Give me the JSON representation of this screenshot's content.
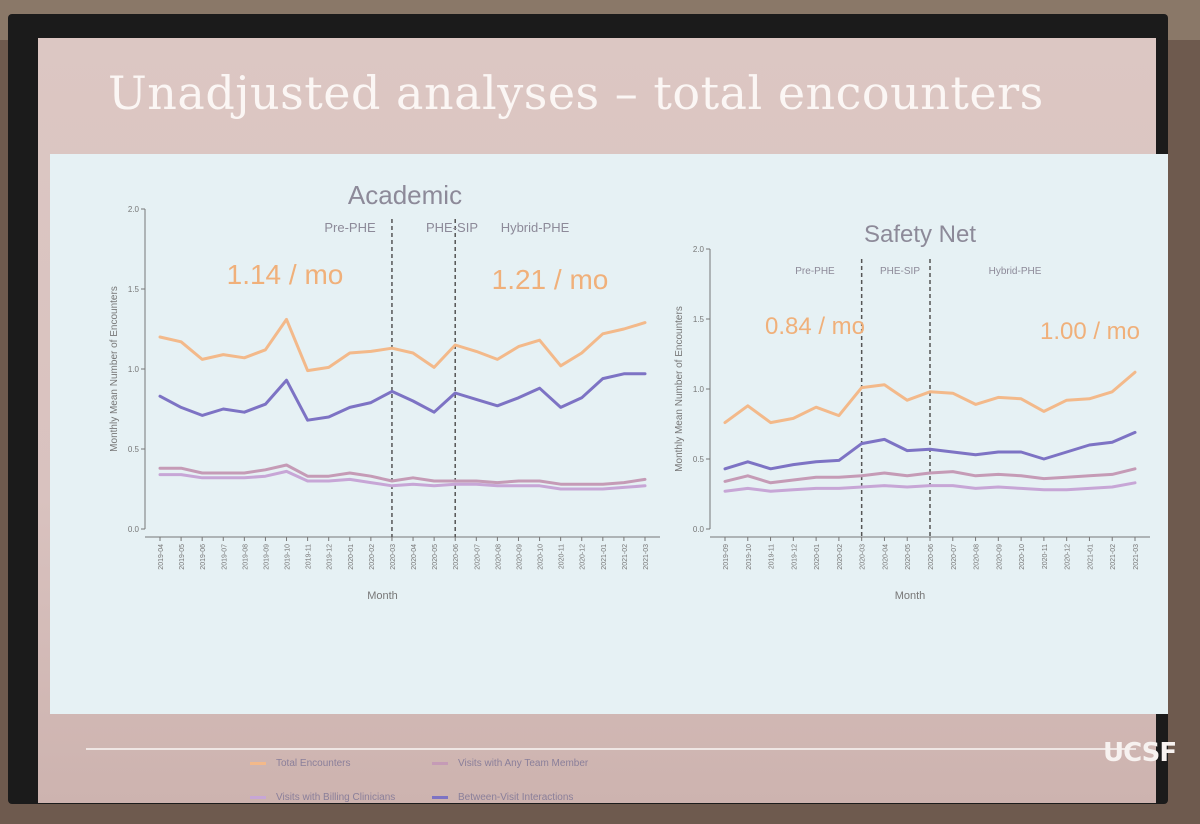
{
  "slide": {
    "title": "Unadjusted analyses – total encounters",
    "logo": "UCSF"
  },
  "colors": {
    "total": "#f3b98a",
    "any_team": "#c59bb6",
    "billing": "#c7a6d6",
    "between": "#7d73c4",
    "period_line": "#555555",
    "axis": "#777777",
    "rate_text": "#f0b07a"
  },
  "legend": [
    {
      "label": "Total Encounters",
      "series": "total"
    },
    {
      "label": "Visits with Any Team Member",
      "series": "any_team"
    },
    {
      "label": "Visits with Billing Clinicians",
      "series": "billing"
    },
    {
      "label": "Between-Visit Interactions",
      "series": "between"
    }
  ],
  "chart_data": [
    {
      "type": "line",
      "title": "Academic",
      "xlabel": "Month",
      "ylabel": "Monthly Mean Number of Encounters",
      "ylim": [
        0,
        2.0
      ],
      "yticks": [
        "0.0",
        "0.5",
        "1.0",
        "1.5",
        "2.0"
      ],
      "x": [
        "2019-04",
        "2019-05",
        "2019-06",
        "2019-07",
        "2019-08",
        "2019-09",
        "2019-10",
        "2019-11",
        "2019-12",
        "2020-01",
        "2020-02",
        "2020-03",
        "2020-04",
        "2020-05",
        "2020-06",
        "2020-07",
        "2020-08",
        "2020-09",
        "2020-10",
        "2020-11",
        "2020-12",
        "2021-01",
        "2021-02",
        "2021-03"
      ],
      "periods": [
        {
          "label": "Pre-PHE",
          "boundary_after": null
        },
        {
          "label": "PHE-SIP",
          "boundary_after": "2020-03"
        },
        {
          "label": "Hybrid-PHE",
          "boundary_after": "2020-06"
        }
      ],
      "boundaries": [
        "2020-03",
        "2020-06"
      ],
      "rates": [
        "1.14 / mo",
        "1.21 / mo"
      ],
      "series": [
        {
          "key": "total",
          "values": [
            1.2,
            1.17,
            1.06,
            1.09,
            1.07,
            1.12,
            1.31,
            0.99,
            1.01,
            1.1,
            1.11,
            1.13,
            1.1,
            1.01,
            1.15,
            1.11,
            1.06,
            1.14,
            1.18,
            1.02,
            1.1,
            1.22,
            1.25,
            1.29
          ]
        },
        {
          "key": "between",
          "values": [
            0.83,
            0.76,
            0.71,
            0.75,
            0.73,
            0.78,
            0.93,
            0.68,
            0.7,
            0.76,
            0.79,
            0.86,
            0.8,
            0.73,
            0.85,
            0.81,
            0.77,
            0.82,
            0.88,
            0.76,
            0.82,
            0.94,
            0.97,
            0.97
          ]
        },
        {
          "key": "any_team",
          "values": [
            0.38,
            0.38,
            0.35,
            0.35,
            0.35,
            0.37,
            0.4,
            0.33,
            0.33,
            0.35,
            0.33,
            0.3,
            0.32,
            0.3,
            0.3,
            0.3,
            0.29,
            0.3,
            0.3,
            0.28,
            0.28,
            0.28,
            0.29,
            0.31
          ]
        },
        {
          "key": "billing",
          "values": [
            0.34,
            0.34,
            0.32,
            0.32,
            0.32,
            0.33,
            0.36,
            0.3,
            0.3,
            0.31,
            0.29,
            0.27,
            0.28,
            0.27,
            0.28,
            0.28,
            0.27,
            0.27,
            0.27,
            0.25,
            0.25,
            0.25,
            0.26,
            0.27
          ]
        }
      ]
    },
    {
      "type": "line",
      "title": "Safety Net",
      "xlabel": "Month",
      "ylabel": "Monthly Mean Number of Encounters",
      "ylim": [
        0,
        2.0
      ],
      "yticks": [
        "0.0",
        "0.5",
        "1.0",
        "1.5",
        "2.0"
      ],
      "x": [
        "2019-09",
        "2019-10",
        "2019-11",
        "2019-12",
        "2020-01",
        "2020-02",
        "2020-03",
        "2020-04",
        "2020-05",
        "2020-06",
        "2020-07",
        "2020-08",
        "2020-09",
        "2020-10",
        "2020-11",
        "2020-12",
        "2021-01",
        "2021-02",
        "2021-03"
      ],
      "periods": [
        {
          "label": "Pre-PHE",
          "boundary_after": null
        },
        {
          "label": "PHE-SIP",
          "boundary_after": "2020-03"
        },
        {
          "label": "Hybrid-PHE",
          "boundary_after": "2020-06"
        }
      ],
      "boundaries": [
        "2020-03",
        "2020-06"
      ],
      "rates": [
        "0.84 / mo",
        "1.00 / mo"
      ],
      "series": [
        {
          "key": "total",
          "values": [
            0.76,
            0.88,
            0.76,
            0.79,
            0.87,
            0.81,
            1.01,
            1.03,
            0.92,
            0.98,
            0.97,
            0.89,
            0.94,
            0.93,
            0.84,
            0.92,
            0.93,
            0.98,
            1.12
          ]
        },
        {
          "key": "between",
          "values": [
            0.43,
            0.48,
            0.43,
            0.46,
            0.48,
            0.49,
            0.61,
            0.64,
            0.56,
            0.57,
            0.55,
            0.53,
            0.55,
            0.55,
            0.5,
            0.55,
            0.6,
            0.62,
            0.69
          ]
        },
        {
          "key": "any_team",
          "values": [
            0.34,
            0.38,
            0.33,
            0.35,
            0.37,
            0.37,
            0.38,
            0.4,
            0.38,
            0.4,
            0.41,
            0.38,
            0.39,
            0.38,
            0.36,
            0.37,
            0.38,
            0.39,
            0.43
          ]
        },
        {
          "key": "billing",
          "values": [
            0.27,
            0.29,
            0.27,
            0.28,
            0.29,
            0.29,
            0.3,
            0.31,
            0.3,
            0.31,
            0.31,
            0.29,
            0.3,
            0.29,
            0.28,
            0.28,
            0.29,
            0.3,
            0.33
          ]
        }
      ]
    }
  ]
}
